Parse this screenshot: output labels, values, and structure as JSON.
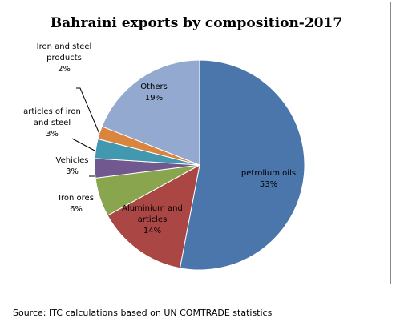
{
  "chart_data": {
    "type": "pie",
    "title": "Bahraini exports by composition-2017",
    "slices": [
      {
        "label": [
          "petrolium oils"
        ],
        "value": 53,
        "pct_text": "53%",
        "color": "#4a76ab"
      },
      {
        "label": [
          "Aluminium and",
          "articles"
        ],
        "value": 14,
        "pct_text": "14%",
        "color": "#aa4643"
      },
      {
        "label": [
          "Iron ores"
        ],
        "value": 6,
        "pct_text": "6%",
        "color": "#89a54e"
      },
      {
        "label": [
          "Vehicles"
        ],
        "value": 3,
        "pct_text": "3%",
        "color": "#71588f"
      },
      {
        "label": [
          "articles of iron",
          "and steel"
        ],
        "value": 3,
        "pct_text": "3%",
        "color": "#4198af"
      },
      {
        "label": [
          "Iron and steel",
          "products"
        ],
        "value": 2,
        "pct_text": "2%",
        "color": "#db843d"
      },
      {
        "label": [
          "Others"
        ],
        "value": 19,
        "pct_text": "19%",
        "color": "#93a9cf"
      }
    ]
  },
  "source": "Source: ITC calculations based on UN COMTRADE statistics"
}
